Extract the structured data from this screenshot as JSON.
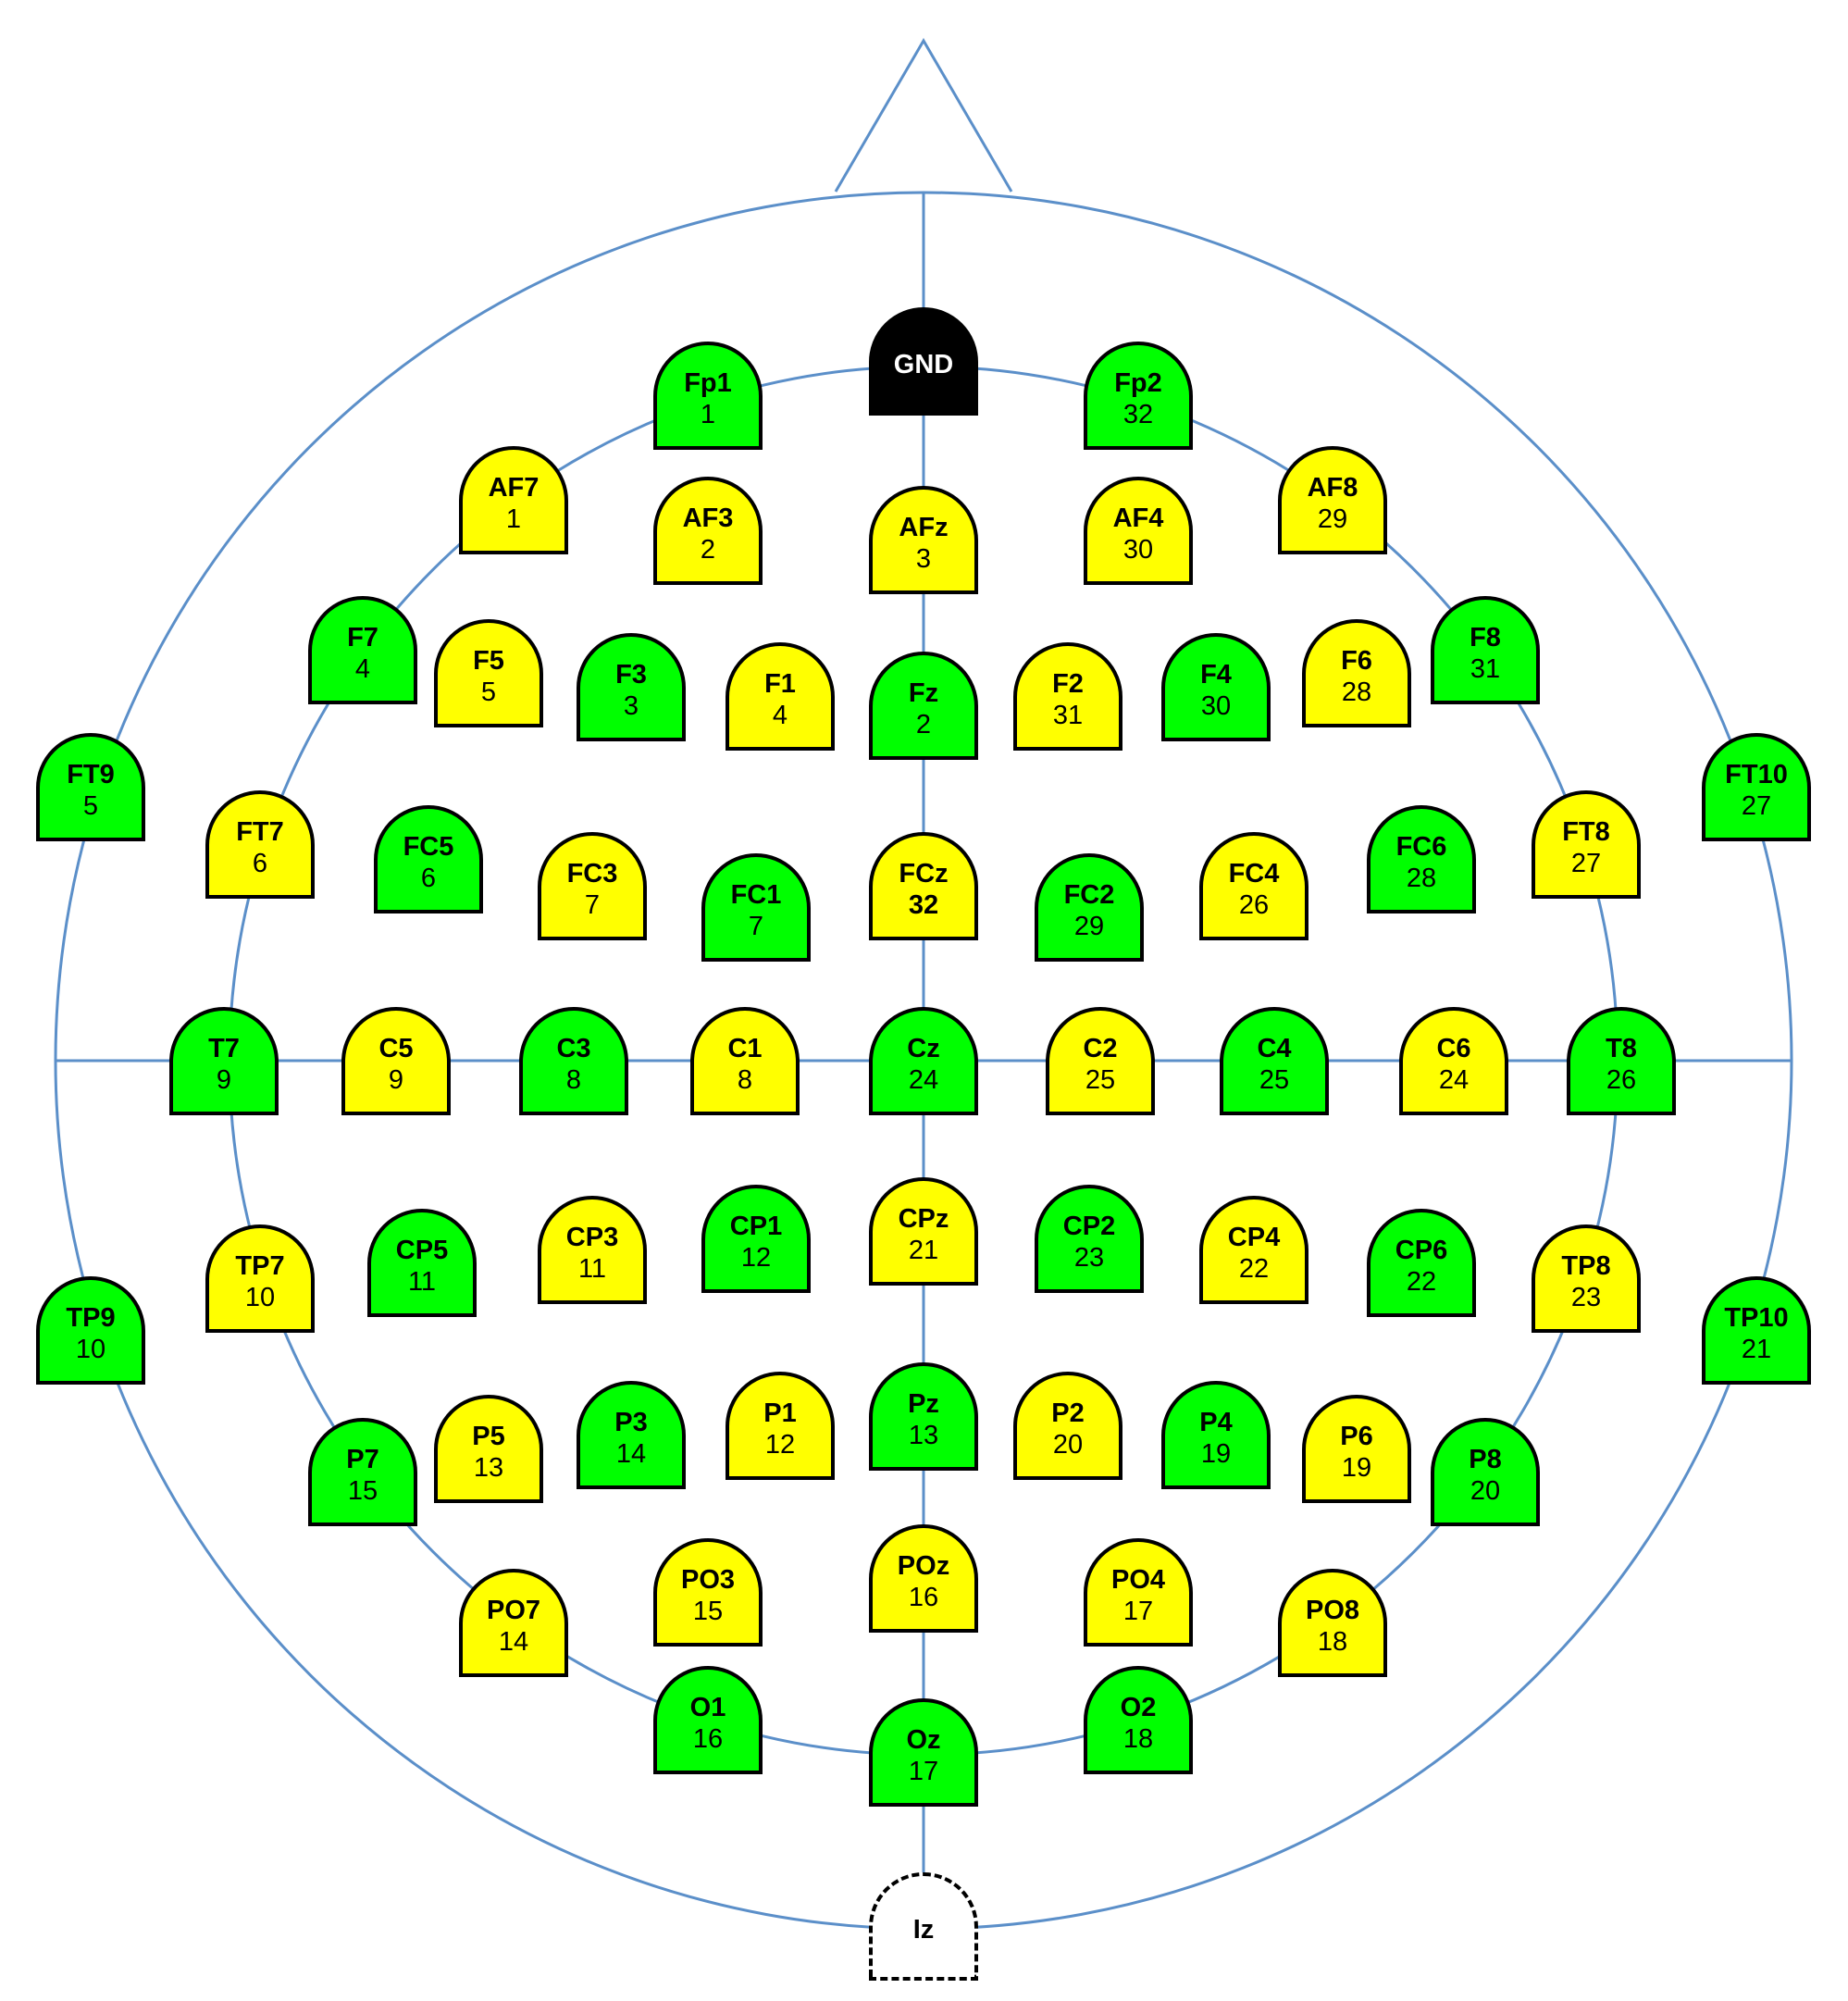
{
  "colors": {
    "line": "#5b8fc9",
    "yellow": "#ffff00",
    "green": "#00ff00",
    "black": "#000000",
    "outline": "#000000"
  },
  "electrodes": [
    {
      "label": "GND",
      "number": "",
      "color": "black"
    },
    {
      "label": "Fp1",
      "number": "1",
      "color": "green"
    },
    {
      "label": "Fp2",
      "number": "32",
      "color": "green"
    },
    {
      "label": "AF7",
      "number": "1",
      "color": "yellow"
    },
    {
      "label": "AF3",
      "number": "2",
      "color": "yellow"
    },
    {
      "label": "AFz",
      "number": "3",
      "color": "yellow"
    },
    {
      "label": "AF4",
      "number": "30",
      "color": "yellow"
    },
    {
      "label": "AF8",
      "number": "29",
      "color": "yellow"
    },
    {
      "label": "F7",
      "number": "4",
      "color": "green"
    },
    {
      "label": "F5",
      "number": "5",
      "color": "yellow"
    },
    {
      "label": "F3",
      "number": "3",
      "color": "green"
    },
    {
      "label": "F1",
      "number": "4",
      "color": "yellow"
    },
    {
      "label": "Fz",
      "number": "2",
      "color": "green"
    },
    {
      "label": "F2",
      "number": "31",
      "color": "yellow"
    },
    {
      "label": "F4",
      "number": "30",
      "color": "green"
    },
    {
      "label": "F6",
      "number": "28",
      "color": "yellow"
    },
    {
      "label": "F8",
      "number": "31",
      "color": "green"
    },
    {
      "label": "FT9",
      "number": "5",
      "color": "green"
    },
    {
      "label": "FT10",
      "number": "27",
      "color": "green"
    },
    {
      "label": "FT7",
      "number": "6",
      "color": "yellow"
    },
    {
      "label": "FC5",
      "number": "6",
      "color": "green"
    },
    {
      "label": "FC3",
      "number": "7",
      "color": "yellow"
    },
    {
      "label": "FC1",
      "number": "7",
      "color": "green"
    },
    {
      "label": "FCz",
      "number": "32",
      "color": "yellow",
      "bold": true
    },
    {
      "label": "FC2",
      "number": "29",
      "color": "green"
    },
    {
      "label": "FC4",
      "number": "26",
      "color": "yellow"
    },
    {
      "label": "FC6",
      "number": "28",
      "color": "green"
    },
    {
      "label": "FT8",
      "number": "27",
      "color": "yellow"
    },
    {
      "label": "T7",
      "number": "9",
      "color": "green"
    },
    {
      "label": "C5",
      "number": "9",
      "color": "yellow"
    },
    {
      "label": "C3",
      "number": "8",
      "color": "green"
    },
    {
      "label": "C1",
      "number": "8",
      "color": "yellow"
    },
    {
      "label": "Cz",
      "number": "24",
      "color": "green"
    },
    {
      "label": "C2",
      "number": "25",
      "color": "yellow"
    },
    {
      "label": "C4",
      "number": "25",
      "color": "green"
    },
    {
      "label": "C6",
      "number": "24",
      "color": "yellow"
    },
    {
      "label": "T8",
      "number": "26",
      "color": "green"
    },
    {
      "label": "TP7",
      "number": "10",
      "color": "yellow"
    },
    {
      "label": "CP5",
      "number": "11",
      "color": "green"
    },
    {
      "label": "CP3",
      "number": "11",
      "color": "yellow"
    },
    {
      "label": "CP1",
      "number": "12",
      "color": "green"
    },
    {
      "label": "CPz",
      "number": "21",
      "color": "yellow"
    },
    {
      "label": "CP2",
      "number": "23",
      "color": "green"
    },
    {
      "label": "CP4",
      "number": "22",
      "color": "yellow"
    },
    {
      "label": "CP6",
      "number": "22",
      "color": "green"
    },
    {
      "label": "TP8",
      "number": "23",
      "color": "yellow"
    },
    {
      "label": "TP9",
      "number": "10",
      "color": "green"
    },
    {
      "label": "TP10",
      "number": "21",
      "color": "green"
    },
    {
      "label": "P7",
      "number": "15",
      "color": "green"
    },
    {
      "label": "P5",
      "number": "13",
      "color": "yellow"
    },
    {
      "label": "P3",
      "number": "14",
      "color": "green"
    },
    {
      "label": "P1",
      "number": "12",
      "color": "yellow"
    },
    {
      "label": "Pz",
      "number": "13",
      "color": "green"
    },
    {
      "label": "P2",
      "number": "20",
      "color": "yellow"
    },
    {
      "label": "P4",
      "number": "19",
      "color": "green"
    },
    {
      "label": "P6",
      "number": "19",
      "color": "yellow"
    },
    {
      "label": "P8",
      "number": "20",
      "color": "green"
    },
    {
      "label": "PO7",
      "number": "14",
      "color": "yellow"
    },
    {
      "label": "PO3",
      "number": "15",
      "color": "yellow"
    },
    {
      "label": "POz",
      "number": "16",
      "color": "yellow"
    },
    {
      "label": "PO4",
      "number": "17",
      "color": "yellow"
    },
    {
      "label": "PO8",
      "number": "18",
      "color": "yellow"
    },
    {
      "label": "O1",
      "number": "16",
      "color": "green"
    },
    {
      "label": "Oz",
      "number": "17",
      "color": "green"
    },
    {
      "label": "O2",
      "number": "18",
      "color": "green"
    },
    {
      "label": "Iz",
      "number": "",
      "color": "dashed"
    }
  ]
}
